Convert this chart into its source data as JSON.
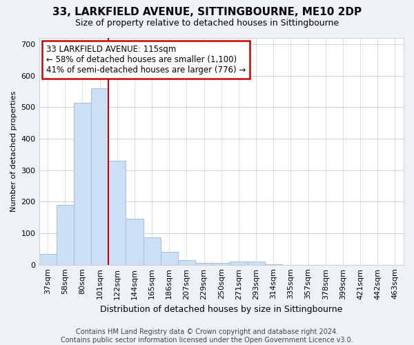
{
  "title": "33, LARKFIELD AVENUE, SITTINGBOURNE, ME10 2DP",
  "subtitle": "Size of property relative to detached houses in Sittingbourne",
  "xlabel": "Distribution of detached houses by size in Sittingbourne",
  "ylabel": "Number of detached properties",
  "categories": [
    "37sqm",
    "58sqm",
    "80sqm",
    "101sqm",
    "122sqm",
    "144sqm",
    "165sqm",
    "186sqm",
    "207sqm",
    "229sqm",
    "250sqm",
    "271sqm",
    "293sqm",
    "314sqm",
    "335sqm",
    "357sqm",
    "378sqm",
    "399sqm",
    "421sqm",
    "442sqm",
    "463sqm"
  ],
  "values": [
    35,
    190,
    515,
    560,
    330,
    145,
    88,
    40,
    15,
    5,
    5,
    10,
    10,
    2,
    0,
    0,
    0,
    0,
    0,
    0,
    0
  ],
  "bar_color": "#cce0f5",
  "bar_edge_color": "#a8c4dc",
  "vline_index": 4,
  "vline_color": "#cc0000",
  "annotation_text": "33 LARKFIELD AVENUE: 115sqm\n← 58% of detached houses are smaller (1,100)\n41% of semi-detached houses are larger (776) →",
  "annotation_box_color": "white",
  "annotation_box_edge": "#cc0000",
  "ylim": [
    0,
    720
  ],
  "yticks": [
    0,
    100,
    200,
    300,
    400,
    500,
    600,
    700
  ],
  "footer": "Contains HM Land Registry data © Crown copyright and database right 2024.\nContains public sector information licensed under the Open Government Licence v3.0.",
  "bg_color": "#eef2f7",
  "plot_bg_color": "#ffffff",
  "grid_color": "#c8d4e0",
  "title_fontsize": 11,
  "subtitle_fontsize": 9,
  "xlabel_fontsize": 9,
  "ylabel_fontsize": 8,
  "tick_fontsize": 8,
  "annotation_fontsize": 8.5,
  "footer_fontsize": 7
}
